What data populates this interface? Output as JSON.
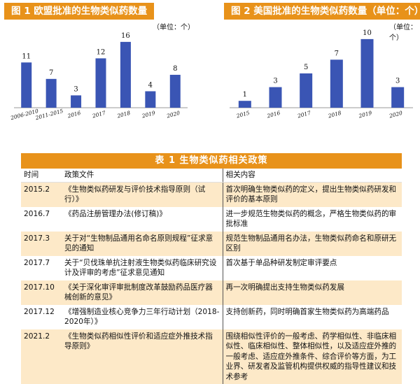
{
  "chart_data": [
    {
      "type": "bar",
      "title": "图 1  欧盟批准的生物类似药数量",
      "unit": "（单位：个）",
      "categories": [
        "2006-2010",
        "2011-2015",
        "2016",
        "2017",
        "2018",
        "2019",
        "2020"
      ],
      "values": [
        11,
        7,
        3,
        12,
        16,
        4,
        8
      ],
      "ylim": [
        0,
        17
      ],
      "grid": false,
      "bar_color": "#3a55b4"
    },
    {
      "type": "bar",
      "title": "图 2  美国批准的生物类似药数量（单位：个）",
      "unit": "（单位：个）",
      "categories": [
        "2015",
        "2016",
        "2017",
        "2018",
        "2019",
        "2020"
      ],
      "values": [
        1,
        3,
        5,
        7,
        10,
        3
      ],
      "ylim": [
        0,
        10.6
      ],
      "grid": false,
      "bar_color": "#3a55b4"
    }
  ],
  "table": {
    "title": "表 1    生物类似药相关政策",
    "headers": [
      "时间",
      "政策文件",
      "相关内容"
    ],
    "rows": [
      {
        "time": "2015.2",
        "doc": "《生物类似药研发与评价技术指导原则（试行）》",
        "content": "首次明确生物类似药的定义，提出生物类似药研发和评价的基本原则"
      },
      {
        "time": "2016.7",
        "doc": "《药品注册管理办法(修订稿)》",
        "content": "进一步规范生物类似药的概念，严格生物类似药的审批标准"
      },
      {
        "time": "2017.3",
        "doc": "关于对“生物制品通用名命名原则规程”征求意见的通知",
        "content": "规范生物制品通用名办法，生物类似药命名和原研无区别"
      },
      {
        "time": "2017.7",
        "doc": "关于“贝伐珠单抗注射液生物类似药临床研究设计及评审的考虑”征求意见通知",
        "content": "首次基于单品种研发制定审评要点"
      },
      {
        "time": "2017.10",
        "doc": "《关于深化审评审批制度改革鼓励药品医疗器械创新的意见》",
        "content": "再一次明确提出支持生物类似药发展"
      },
      {
        "time": "2017.12",
        "doc": "《增强制造业核心竞争力三年行动计划（2018-2020年）》",
        "content": "支持创新药，同时明确首家生物类似药为高端药品"
      },
      {
        "time": "2021.2",
        "doc": "《生物类似药相似性评价和适应症外推技术指导原则》",
        "content": "围绕相似性评价的一般考虑、药学相似性、非临床相似性、临床相似性、整体相似性，以及适应症外推的一般考虑、适应症外推条件、综合评价等方面，为工业界、研发者及监管机构提供权威的指导性建议和技术参考"
      }
    ]
  }
}
